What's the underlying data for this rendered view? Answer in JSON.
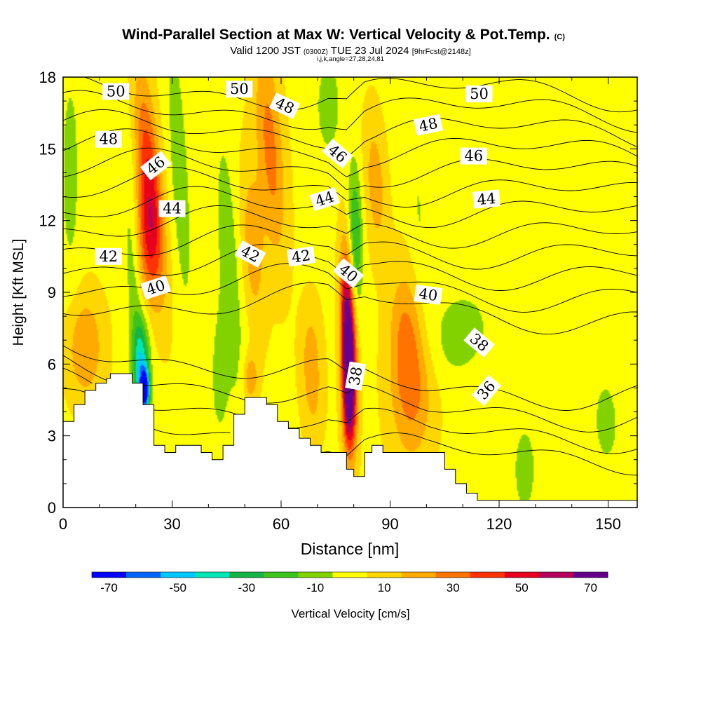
{
  "chart_data": {
    "type": "heatmap",
    "title": "Wind-Parallel Section at Max W: Vertical Velocity & Pot.Temp.",
    "title_mark": "(C)",
    "subtitle_parts": [
      "Valid 1200 JST",
      "(0300Z)",
      "TUE 23 Jul 2024",
      "[9hrFcst@2148z]"
    ],
    "subtitle2": "i,j,k,angle=27,28,24,81",
    "xlabel": "Distance [nm]",
    "ylabel": "Height [Kft MSL]",
    "xlim": [
      0,
      158
    ],
    "ylim": [
      0,
      18
    ],
    "x_ticks": [
      0,
      30,
      60,
      90,
      120,
      150
    ],
    "x_minor_step": 10,
    "y_ticks": [
      0,
      3,
      6,
      9,
      12,
      15,
      18
    ],
    "y_minor_step": 1,
    "colorbar": {
      "label": "Vertical Velocity [cm/s]",
      "range": [
        -75,
        75
      ],
      "step": 10,
      "tick_labels": [
        "-70",
        "-50",
        "-30",
        "-10",
        "10",
        "30",
        "50",
        "70"
      ],
      "tick_values": [
        -70,
        -50,
        -30,
        -10,
        10,
        30,
        50,
        70
      ],
      "colors": [
        "#0000ff",
        "#0066ff",
        "#00c8ff",
        "#00e6b4",
        "#14b446",
        "#3cc31e",
        "#82d200",
        "#ffff00",
        "#ffd700",
        "#ffaa00",
        "#ff7300",
        "#ff3200",
        "#e6001e",
        "#b4005a",
        "#64008c"
      ]
    },
    "theta_contour_labels": [
      {
        "text": "50",
        "x": 14.5,
        "y": 17.4,
        "rot": 0
      },
      {
        "text": "50",
        "x": 48.5,
        "y": 17.5,
        "rot": 0
      },
      {
        "text": "48",
        "x": 61,
        "y": 16.8,
        "rot": 25
      },
      {
        "text": "50",
        "x": 114.5,
        "y": 17.3,
        "rot": 0
      },
      {
        "text": "48",
        "x": 12.5,
        "y": 15.4,
        "rot": 0
      },
      {
        "text": "48",
        "x": 100.5,
        "y": 16.0,
        "rot": -12
      },
      {
        "text": "46",
        "x": 25.5,
        "y": 14.3,
        "rot": -38
      },
      {
        "text": "46",
        "x": 75.5,
        "y": 14.8,
        "rot": 40
      },
      {
        "text": "46",
        "x": 113,
        "y": 14.7,
        "rot": 0
      },
      {
        "text": "44",
        "x": 30,
        "y": 12.5,
        "rot": 0
      },
      {
        "text": "44",
        "x": 72,
        "y": 12.9,
        "rot": -18
      },
      {
        "text": "44",
        "x": 116.5,
        "y": 12.9,
        "rot": -5
      },
      {
        "text": "42",
        "x": 12.5,
        "y": 10.5,
        "rot": 0
      },
      {
        "text": "42",
        "x": 51.5,
        "y": 10.6,
        "rot": 28
      },
      {
        "text": "42",
        "x": 65.5,
        "y": 10.5,
        "rot": -8
      },
      {
        "text": "40",
        "x": 25.5,
        "y": 9.2,
        "rot": -18
      },
      {
        "text": "40",
        "x": 78.5,
        "y": 9.8,
        "rot": 40
      },
      {
        "text": "40",
        "x": 100.5,
        "y": 8.9,
        "rot": 8
      },
      {
        "text": "38",
        "x": 114.5,
        "y": 6.9,
        "rot": 40
      },
      {
        "text": "38",
        "x": 80.5,
        "y": 5.5,
        "rot": -80
      },
      {
        "text": "36",
        "x": 116.5,
        "y": 4.9,
        "rot": -50
      }
    ],
    "terrain_top": [
      [
        0,
        3.6
      ],
      [
        3,
        3.6
      ],
      [
        3,
        4.3
      ],
      [
        6,
        4.3
      ],
      [
        6,
        4.9
      ],
      [
        9,
        4.9
      ],
      [
        9,
        5.2
      ],
      [
        12,
        5.2
      ],
      [
        12,
        5.4
      ],
      [
        13,
        5.4
      ],
      [
        13,
        5.6
      ],
      [
        19,
        5.6
      ],
      [
        19,
        5.2
      ],
      [
        22,
        5.2
      ],
      [
        22,
        4.3
      ],
      [
        25,
        4.3
      ],
      [
        25,
        2.6
      ],
      [
        28,
        2.6
      ],
      [
        28,
        2.3
      ],
      [
        31,
        2.3
      ],
      [
        31,
        2.6
      ],
      [
        38,
        2.6
      ],
      [
        38,
        2.3
      ],
      [
        41,
        2.3
      ],
      [
        41,
        2.0
      ],
      [
        44,
        2.0
      ],
      [
        44,
        2.6
      ],
      [
        47,
        2.6
      ],
      [
        47,
        3.9
      ],
      [
        50,
        3.9
      ],
      [
        50,
        4.6
      ],
      [
        56,
        4.6
      ],
      [
        56,
        4.3
      ],
      [
        59,
        4.3
      ],
      [
        59,
        3.6
      ],
      [
        62,
        3.6
      ],
      [
        62,
        3.3
      ],
      [
        65,
        3.3
      ],
      [
        65,
        2.9
      ],
      [
        68,
        2.9
      ],
      [
        68,
        2.6
      ],
      [
        71,
        2.6
      ],
      [
        71,
        2.3
      ],
      [
        78,
        2.3
      ],
      [
        78,
        1.6
      ],
      [
        80,
        1.6
      ],
      [
        80,
        1.3
      ],
      [
        83,
        1.3
      ],
      [
        83,
        2.3
      ],
      [
        85,
        2.3
      ],
      [
        85,
        2.6
      ],
      [
        88,
        2.6
      ],
      [
        88,
        2.3
      ],
      [
        105,
        2.3
      ],
      [
        105,
        1.6
      ],
      [
        108,
        1.6
      ],
      [
        108,
        1.0
      ],
      [
        111,
        1.0
      ],
      [
        111,
        0.6
      ],
      [
        114,
        0.6
      ],
      [
        114,
        0.3
      ],
      [
        158,
        0.3
      ]
    ],
    "w_field": {
      "background": 3,
      "features": [
        {
          "x": 78.5,
          "y": 6.8,
          "sx": 1.3,
          "sy": 2.4,
          "amp": 88,
          "tilt": -0.2
        },
        {
          "x": 78.5,
          "y": 4.5,
          "sx": 1.2,
          "sy": 1.6,
          "amp": 40,
          "tilt": 0
        },
        {
          "x": 24,
          "y": 13.5,
          "sx": 2.2,
          "sy": 3.0,
          "amp": 42,
          "tilt": -0.55
        },
        {
          "x": 23,
          "y": 11,
          "sx": 2.2,
          "sy": 1.8,
          "amp": 26,
          "tilt": -0.3
        },
        {
          "x": 57,
          "y": 15.0,
          "sx": 2.5,
          "sy": 3.2,
          "amp": 26,
          "tilt": -0.45
        },
        {
          "x": 52,
          "y": 11,
          "sx": 2.4,
          "sy": 2.5,
          "amp": 18,
          "tilt": -0.3
        },
        {
          "x": 96,
          "y": 5.0,
          "sx": 4.2,
          "sy": 2.2,
          "amp": 24,
          "tilt": 0
        },
        {
          "x": 94,
          "y": 7.5,
          "sx": 3.0,
          "sy": 2.0,
          "amp": 16,
          "tilt": -0.2
        },
        {
          "x": 6,
          "y": 6.7,
          "sx": 3.5,
          "sy": 1.5,
          "amp": 22,
          "tilt": 0
        },
        {
          "x": 86,
          "y": 13.5,
          "sx": 2.0,
          "sy": 2.0,
          "amp": 18,
          "tilt": -0.3
        },
        {
          "x": 51.5,
          "y": 5.4,
          "sx": 1.4,
          "sy": 0.7,
          "amp": 22,
          "tilt": 0
        },
        {
          "x": 68,
          "y": 6.5,
          "sx": 2.0,
          "sy": 1.5,
          "amp": 14,
          "tilt": 0
        },
        {
          "x": 69,
          "y": 4.5,
          "sx": 2.0,
          "sy": 1.5,
          "amp": 10,
          "tilt": 0
        },
        {
          "x": 21.5,
          "y": 6.0,
          "sx": 1.6,
          "sy": 1.3,
          "amp": -42,
          "tilt": 0
        },
        {
          "x": 22.5,
          "y": 4.9,
          "sx": 0.9,
          "sy": 0.6,
          "amp": -70,
          "tilt": 0
        },
        {
          "x": 80.5,
          "y": 11.5,
          "sx": 1.3,
          "sy": 2.0,
          "amp": -28,
          "tilt": -0.15
        },
        {
          "x": 19.5,
          "y": 9,
          "sx": 1.5,
          "sy": 4.5,
          "amp": -14,
          "tilt": -0.3
        },
        {
          "x": 32,
          "y": 14,
          "sx": 2.0,
          "sy": 4.5,
          "amp": -14,
          "tilt": -0.35
        },
        {
          "x": 46,
          "y": 10,
          "sx": 2.5,
          "sy": 4.5,
          "amp": -14,
          "tilt": -0.4
        },
        {
          "x": 43,
          "y": 5.5,
          "sx": 1.8,
          "sy": 2.0,
          "amp": -12,
          "tilt": 0
        },
        {
          "x": 108,
          "y": 7.2,
          "sx": 6.0,
          "sy": 1.3,
          "amp": -12,
          "tilt": 0.6
        },
        {
          "x": 2,
          "y": 14,
          "sx": 2.0,
          "sy": 3.5,
          "amp": -12,
          "tilt": 0
        },
        {
          "x": 127,
          "y": 1.5,
          "sx": 2.0,
          "sy": 1.2,
          "amp": -14,
          "tilt": 0
        },
        {
          "x": 135,
          "y": 12,
          "sx": 16,
          "sy": 6.0,
          "amp": -7,
          "tilt": 0
        },
        {
          "x": 150,
          "y": 3,
          "sx": 6.0,
          "sy": 3.0,
          "amp": -7,
          "tilt": 0
        },
        {
          "x": 73,
          "y": 16.8,
          "sx": 3.0,
          "sy": 1.8,
          "amp": -12,
          "tilt": 0
        },
        {
          "x": 98,
          "y": 12,
          "sx": 2.0,
          "sy": 3.5,
          "amp": -8,
          "tilt": -0.35
        }
      ]
    }
  }
}
